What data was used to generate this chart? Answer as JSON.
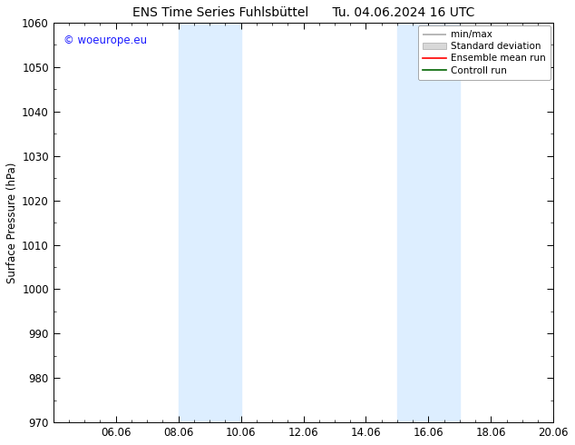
{
  "title": "ENS Time Series Fuhlsbüttel",
  "title_date": "Tu. 04.06.2024 16 UTC",
  "ylabel": "Surface Pressure (hPa)",
  "ylim": [
    970,
    1060
  ],
  "yticks": [
    970,
    980,
    990,
    1000,
    1010,
    1020,
    1030,
    1040,
    1050,
    1060
  ],
  "xlim": [
    0.0,
    16.0
  ],
  "xtick_labels": [
    "06.06",
    "08.06",
    "10.06",
    "12.06",
    "14.06",
    "16.06",
    "18.06",
    "20.06"
  ],
  "xtick_positions": [
    2.0,
    4.0,
    6.0,
    8.0,
    10.0,
    12.0,
    14.0,
    16.0
  ],
  "shaded_bands": [
    {
      "x_start": 4.0,
      "x_end": 6.0
    },
    {
      "x_start": 11.0,
      "x_end": 13.0
    }
  ],
  "shaded_color": "#ddeeff",
  "background_color": "#ffffff",
  "watermark_text": "© woeurope.eu",
  "watermark_color": "#1a1aff",
  "font_size": 8.5,
  "title_font_size": 10,
  "legend_fontsize": 7.5
}
